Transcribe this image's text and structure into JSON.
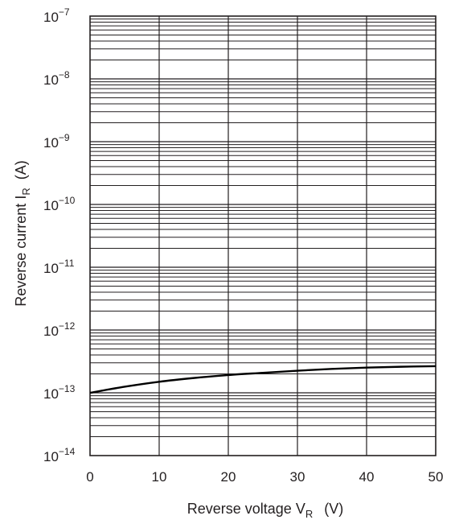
{
  "chart_data": {
    "type": "line",
    "title": "",
    "xlabel": "Reverse voltage",
    "xlabel_symbol": "V",
    "xlabel_subscript": "R",
    "xlabel_unit": "(V)",
    "ylabel": "Reverse current",
    "ylabel_symbol": "I",
    "ylabel_subscript": "R",
    "ylabel_unit": "(A)",
    "xlim": [
      0,
      50
    ],
    "ylim": [
      1e-14,
      1e-07
    ],
    "yscale": "log",
    "grid": true,
    "x_ticks": [
      "0",
      "10",
      "20",
      "30",
      "40",
      "50"
    ],
    "y_ticks": [
      {
        "base": "10",
        "exp": "−14"
      },
      {
        "base": "10",
        "exp": "−13"
      },
      {
        "base": "10",
        "exp": "−12"
      },
      {
        "base": "10",
        "exp": "−11"
      },
      {
        "base": "10",
        "exp": "−10"
      },
      {
        "base": "10",
        "exp": "−9"
      },
      {
        "base": "10",
        "exp": "−8"
      },
      {
        "base": "10",
        "exp": "−7"
      }
    ],
    "series": [
      {
        "color": "#000000",
        "x": [
          0,
          5,
          10,
          15,
          20,
          25,
          30,
          35,
          40,
          45,
          50
        ],
        "y": [
          1e-13,
          1.25e-13,
          1.5e-13,
          1.72e-13,
          1.92e-13,
          2.08e-13,
          2.25e-13,
          2.4e-13,
          2.52e-13,
          2.6e-13,
          2.65e-13
        ]
      }
    ]
  }
}
